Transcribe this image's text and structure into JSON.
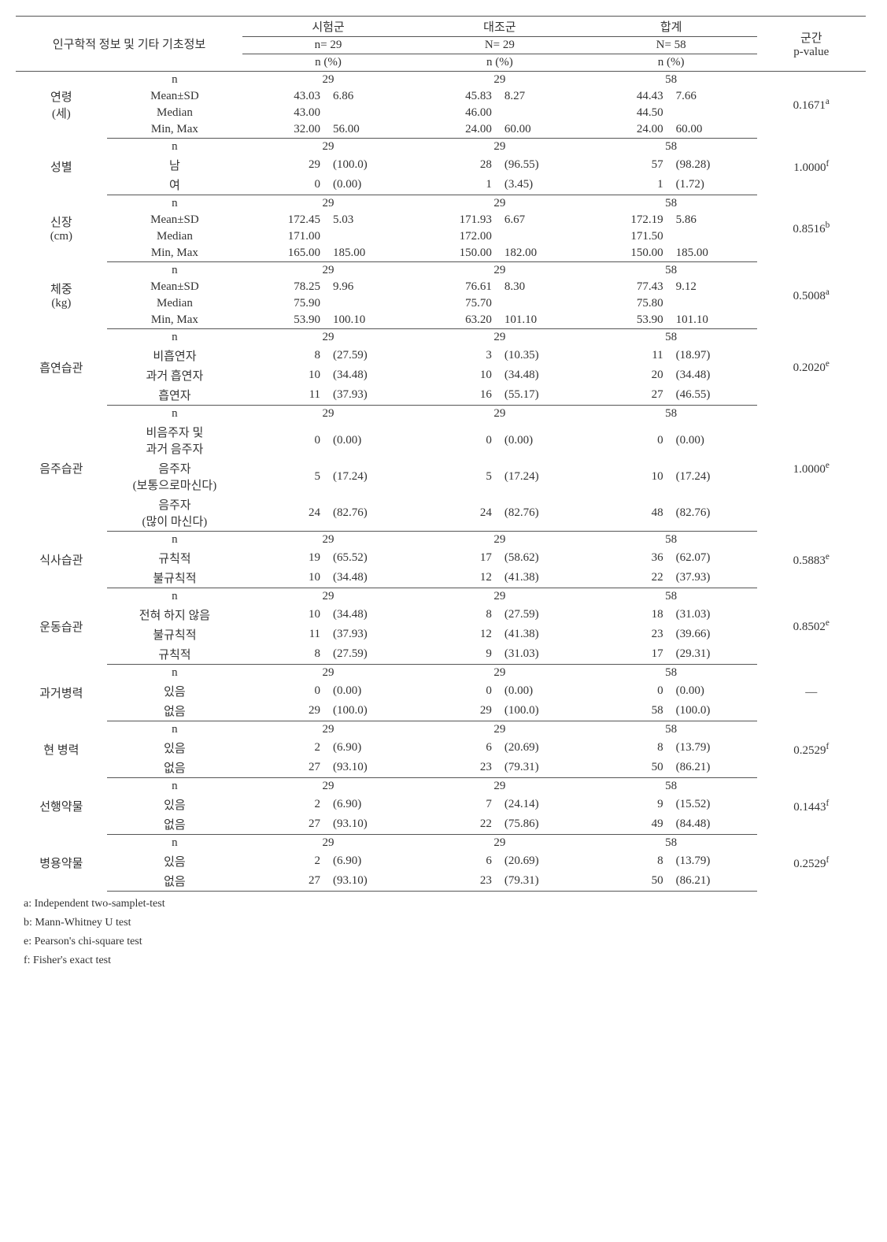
{
  "header": {
    "title": "인구학적 정보 및 기타 기초정보",
    "groups": [
      {
        "name": "시험군",
        "nlabel": "n= 29",
        "pctlabel": "n (%)"
      },
      {
        "name": "대조군",
        "nlabel": "N= 29",
        "pctlabel": "n (%)"
      },
      {
        "name": "합계",
        "nlabel": "N= 58",
        "pctlabel": "n (%)"
      }
    ],
    "pvalue": "군간\np-value"
  },
  "sections": [
    {
      "label": "연령\n(세)",
      "pvalue": "0.1671",
      "pnote": "a",
      "rows": [
        {
          "stat": "n",
          "cells": [
            [
              "29",
              ""
            ],
            [
              "29",
              ""
            ],
            [
              "58",
              ""
            ]
          ],
          "center": true
        },
        {
          "stat": "Mean±SD",
          "cells": [
            [
              "43.03",
              "6.86"
            ],
            [
              "45.83",
              "8.27"
            ],
            [
              "44.43",
              "7.66"
            ]
          ]
        },
        {
          "stat": "Median",
          "cells": [
            [
              "43.00",
              ""
            ],
            [
              "46.00",
              ""
            ],
            [
              "44.50",
              ""
            ]
          ]
        },
        {
          "stat": "Min, Max",
          "cells": [
            [
              "32.00",
              "56.00"
            ],
            [
              "24.00",
              "60.00"
            ],
            [
              "24.00",
              "60.00"
            ]
          ]
        }
      ]
    },
    {
      "label": "성별",
      "pvalue": "1.0000",
      "pnote": "f",
      "rows": [
        {
          "stat": "n",
          "cells": [
            [
              "29",
              ""
            ],
            [
              "29",
              ""
            ],
            [
              "58",
              ""
            ]
          ],
          "center": true
        },
        {
          "stat": "남",
          "cells": [
            [
              "29",
              "(100.0)"
            ],
            [
              "28",
              "(96.55)"
            ],
            [
              "57",
              "(98.28)"
            ]
          ]
        },
        {
          "stat": "여",
          "cells": [
            [
              "0",
              "(0.00)"
            ],
            [
              "1",
              "(3.45)"
            ],
            [
              "1",
              "(1.72)"
            ]
          ]
        }
      ]
    },
    {
      "label": "신장\n(cm)",
      "pvalue": "0.8516",
      "pnote": "b",
      "rows": [
        {
          "stat": "n",
          "cells": [
            [
              "29",
              ""
            ],
            [
              "29",
              ""
            ],
            [
              "58",
              ""
            ]
          ],
          "center": true
        },
        {
          "stat": "Mean±SD",
          "cells": [
            [
              "172.45",
              "5.03"
            ],
            [
              "171.93",
              "6.67"
            ],
            [
              "172.19",
              "5.86"
            ]
          ]
        },
        {
          "stat": "Median",
          "cells": [
            [
              "171.00",
              ""
            ],
            [
              "172.00",
              ""
            ],
            [
              "171.50",
              ""
            ]
          ]
        },
        {
          "stat": "Min, Max",
          "cells": [
            [
              "165.00",
              "185.00"
            ],
            [
              "150.00",
              "182.00"
            ],
            [
              "150.00",
              "185.00"
            ]
          ]
        }
      ]
    },
    {
      "label": "체중\n(kg)",
      "pvalue": "0.5008",
      "pnote": "a",
      "rows": [
        {
          "stat": "n",
          "cells": [
            [
              "29",
              ""
            ],
            [
              "29",
              ""
            ],
            [
              "58",
              ""
            ]
          ],
          "center": true
        },
        {
          "stat": "Mean±SD",
          "cells": [
            [
              "78.25",
              "9.96"
            ],
            [
              "76.61",
              "8.30"
            ],
            [
              "77.43",
              "9.12"
            ]
          ]
        },
        {
          "stat": "Median",
          "cells": [
            [
              "75.90",
              ""
            ],
            [
              "75.70",
              ""
            ],
            [
              "75.80",
              ""
            ]
          ]
        },
        {
          "stat": "Min, Max",
          "cells": [
            [
              "53.90",
              "100.10"
            ],
            [
              "63.20",
              "101.10"
            ],
            [
              "53.90",
              "101.10"
            ]
          ]
        }
      ]
    },
    {
      "label": "흡연습관",
      "pvalue": "0.2020",
      "pnote": "e",
      "rows": [
        {
          "stat": "n",
          "cells": [
            [
              "29",
              ""
            ],
            [
              "29",
              ""
            ],
            [
              "58",
              ""
            ]
          ],
          "center": true
        },
        {
          "stat": "비흡연자",
          "cells": [
            [
              "8",
              "(27.59)"
            ],
            [
              "3",
              "(10.35)"
            ],
            [
              "11",
              "(18.97)"
            ]
          ]
        },
        {
          "stat": "과거 흡연자",
          "cells": [
            [
              "10",
              "(34.48)"
            ],
            [
              "10",
              "(34.48)"
            ],
            [
              "20",
              "(34.48)"
            ]
          ]
        },
        {
          "stat": "흡연자",
          "cells": [
            [
              "11",
              "(37.93)"
            ],
            [
              "16",
              "(55.17)"
            ],
            [
              "27",
              "(46.55)"
            ]
          ]
        }
      ]
    },
    {
      "label": "음주습관",
      "pvalue": "1.0000",
      "pnote": "e",
      "rows": [
        {
          "stat": "n",
          "cells": [
            [
              "29",
              ""
            ],
            [
              "29",
              ""
            ],
            [
              "58",
              ""
            ]
          ],
          "center": true
        },
        {
          "stat": "비음주자 및\n과거 음주자",
          "cells": [
            [
              "0",
              "(0.00)"
            ],
            [
              "0",
              "(0.00)"
            ],
            [
              "0",
              "(0.00)"
            ]
          ]
        },
        {
          "stat": "음주자\n(보통으로마신다)",
          "cells": [
            [
              "5",
              "(17.24)"
            ],
            [
              "5",
              "(17.24)"
            ],
            [
              "10",
              "(17.24)"
            ]
          ]
        },
        {
          "stat": "음주자\n(많이 마신다)",
          "cells": [
            [
              "24",
              "(82.76)"
            ],
            [
              "24",
              "(82.76)"
            ],
            [
              "48",
              "(82.76)"
            ]
          ]
        }
      ]
    },
    {
      "label": "식사습관",
      "pvalue": "0.5883",
      "pnote": "e",
      "rows": [
        {
          "stat": "n",
          "cells": [
            [
              "29",
              ""
            ],
            [
              "29",
              ""
            ],
            [
              "58",
              ""
            ]
          ],
          "center": true
        },
        {
          "stat": "규칙적",
          "cells": [
            [
              "19",
              "(65.52)"
            ],
            [
              "17",
              "(58.62)"
            ],
            [
              "36",
              "(62.07)"
            ]
          ]
        },
        {
          "stat": "불규칙적",
          "cells": [
            [
              "10",
              "(34.48)"
            ],
            [
              "12",
              "(41.38)"
            ],
            [
              "22",
              "(37.93)"
            ]
          ]
        }
      ]
    },
    {
      "label": "운동습관",
      "pvalue": "0.8502",
      "pnote": "e",
      "rows": [
        {
          "stat": "n",
          "cells": [
            [
              "29",
              ""
            ],
            [
              "29",
              ""
            ],
            [
              "58",
              ""
            ]
          ],
          "center": true
        },
        {
          "stat": "전혀 하지 않음",
          "cells": [
            [
              "10",
              "(34.48)"
            ],
            [
              "8",
              "(27.59)"
            ],
            [
              "18",
              "(31.03)"
            ]
          ]
        },
        {
          "stat": "불규칙적",
          "cells": [
            [
              "11",
              "(37.93)"
            ],
            [
              "12",
              "(41.38)"
            ],
            [
              "23",
              "(39.66)"
            ]
          ]
        },
        {
          "stat": "규칙적",
          "cells": [
            [
              "8",
              "(27.59)"
            ],
            [
              "9",
              "(31.03)"
            ],
            [
              "17",
              "(29.31)"
            ]
          ]
        }
      ]
    },
    {
      "label": "과거병력",
      "pvalue": "—",
      "pnote": "",
      "rows": [
        {
          "stat": "n",
          "cells": [
            [
              "29",
              ""
            ],
            [
              "29",
              ""
            ],
            [
              "58",
              ""
            ]
          ],
          "center": true
        },
        {
          "stat": "있음",
          "cells": [
            [
              "0",
              "(0.00)"
            ],
            [
              "0",
              "(0.00)"
            ],
            [
              "0",
              "(0.00)"
            ]
          ]
        },
        {
          "stat": "없음",
          "cells": [
            [
              "29",
              "(100.0)"
            ],
            [
              "29",
              "(100.0)"
            ],
            [
              "58",
              "(100.0)"
            ]
          ]
        }
      ]
    },
    {
      "label": "현 병력",
      "pvalue": "0.2529",
      "pnote": "f",
      "rows": [
        {
          "stat": "n",
          "cells": [
            [
              "29",
              ""
            ],
            [
              "29",
              ""
            ],
            [
              "58",
              ""
            ]
          ],
          "center": true
        },
        {
          "stat": "있음",
          "cells": [
            [
              "2",
              "(6.90)"
            ],
            [
              "6",
              "(20.69)"
            ],
            [
              "8",
              "(13.79)"
            ]
          ]
        },
        {
          "stat": "없음",
          "cells": [
            [
              "27",
              "(93.10)"
            ],
            [
              "23",
              "(79.31)"
            ],
            [
              "50",
              "(86.21)"
            ]
          ]
        }
      ]
    },
    {
      "label": "선행약물",
      "pvalue": "0.1443",
      "pnote": "f",
      "rows": [
        {
          "stat": "n",
          "cells": [
            [
              "29",
              ""
            ],
            [
              "29",
              ""
            ],
            [
              "58",
              ""
            ]
          ],
          "center": true
        },
        {
          "stat": "있음",
          "cells": [
            [
              "2",
              "(6.90)"
            ],
            [
              "7",
              "(24.14)"
            ],
            [
              "9",
              "(15.52)"
            ]
          ]
        },
        {
          "stat": "없음",
          "cells": [
            [
              "27",
              "(93.10)"
            ],
            [
              "22",
              "(75.86)"
            ],
            [
              "49",
              "(84.48)"
            ]
          ]
        }
      ]
    },
    {
      "label": "병용약물",
      "pvalue": "0.2529",
      "pnote": "f",
      "rows": [
        {
          "stat": "n",
          "cells": [
            [
              "29",
              ""
            ],
            [
              "29",
              ""
            ],
            [
              "58",
              ""
            ]
          ],
          "center": true
        },
        {
          "stat": "있음",
          "cells": [
            [
              "2",
              "(6.90)"
            ],
            [
              "6",
              "(20.69)"
            ],
            [
              "8",
              "(13.79)"
            ]
          ]
        },
        {
          "stat": "없음",
          "cells": [
            [
              "27",
              "(93.10)"
            ],
            [
              "23",
              "(79.31)"
            ],
            [
              "50",
              "(86.21)"
            ]
          ]
        }
      ]
    }
  ],
  "footnotes": [
    "a: Independent two-samplet-test",
    "b: Mann-Whitney U test",
    "e: Pearson's chi-square test",
    "f: Fisher's exact test"
  ]
}
